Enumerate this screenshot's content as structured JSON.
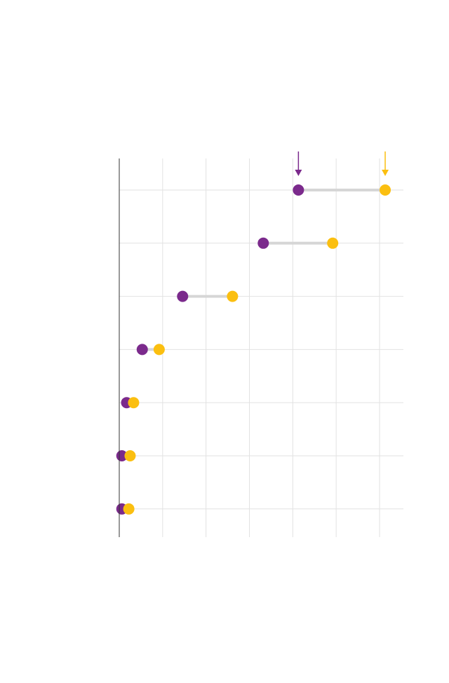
{
  "chart_data": {
    "type": "dumbbell",
    "title": "",
    "xlabel": "",
    "ylabel": "",
    "x_tick_step": 1,
    "xlim": [
      0,
      6.55
    ],
    "grid": true,
    "rows": 7,
    "series": [
      {
        "color": "#7b2a8c",
        "values": [
          4.13,
          3.32,
          1.46,
          0.53,
          0.17,
          0.06,
          0.06
        ]
      },
      {
        "color": "#fbbf10",
        "values": [
          6.13,
          4.92,
          2.61,
          0.92,
          0.33,
          0.25,
          0.22
        ]
      }
    ],
    "markers": [
      {
        "series": 0,
        "color": "#7b2a8c"
      },
      {
        "series": 1,
        "color": "#fbbf10"
      }
    ]
  }
}
